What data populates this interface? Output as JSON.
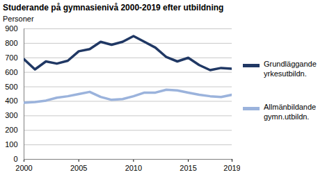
{
  "chart_data": {
    "type": "line",
    "title": "Studerande på gymnasienivå 2000-2019 efter utbildning",
    "y_label": "Personer",
    "x": [
      2000,
      2001,
      2002,
      2003,
      2004,
      2005,
      2006,
      2007,
      2008,
      2009,
      2010,
      2011,
      2012,
      2013,
      2014,
      2015,
      2016,
      2017,
      2018,
      2019
    ],
    "series": [
      {
        "name": "Grundläggande yrkesutbildn.",
        "color": "#203864",
        "values": [
          690,
          620,
          675,
          660,
          680,
          745,
          760,
          810,
          790,
          810,
          850,
          810,
          770,
          705,
          675,
          700,
          650,
          615,
          630,
          625
        ]
      },
      {
        "name": "Allmänbildande gymn.utbildn.",
        "color": "#9bb3dc",
        "values": [
          390,
          395,
          405,
          425,
          435,
          450,
          465,
          430,
          410,
          415,
          435,
          460,
          460,
          480,
          475,
          460,
          445,
          435,
          430,
          445
        ]
      }
    ],
    "xlim": [
      2000,
      2019
    ],
    "xticks": [
      2000,
      2005,
      2010,
      2015,
      2019
    ],
    "ylim": [
      0,
      900
    ],
    "yticks": [
      0,
      100,
      200,
      300,
      400,
      500,
      600,
      700,
      800,
      900
    ],
    "grid": true,
    "legend": "right"
  }
}
